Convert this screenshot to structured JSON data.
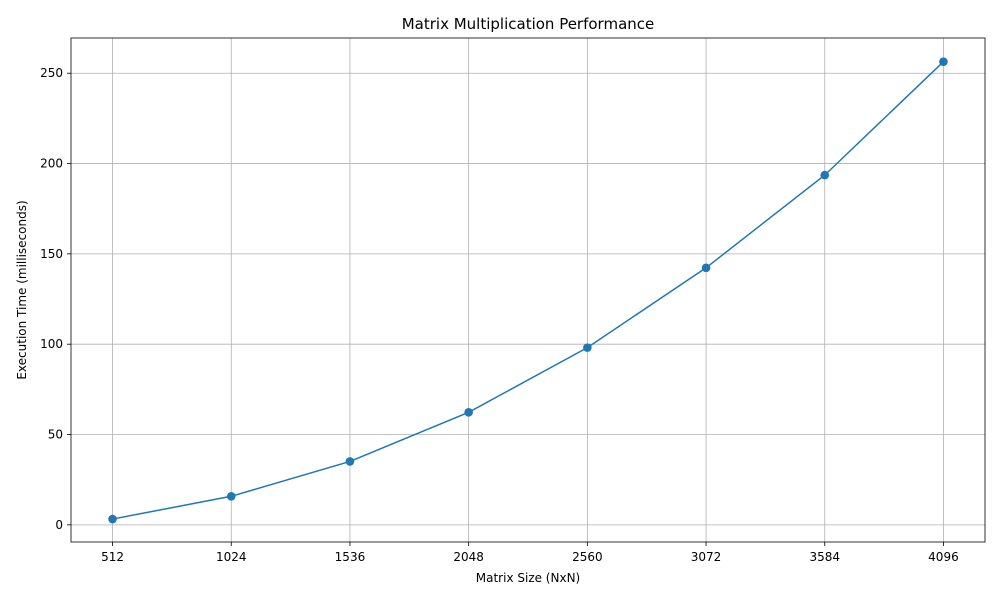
{
  "chart_data": {
    "type": "line",
    "title": "Matrix Multiplication Performance",
    "xlabel": "Matrix Size (NxN)",
    "ylabel": "Execution Time (milliseconds)",
    "x": [
      512,
      1024,
      1536,
      2048,
      2560,
      3072,
      3584,
      4096
    ],
    "xticks": [
      "512",
      "1024",
      "1536",
      "2048",
      "2560",
      "3072",
      "3584",
      "4096"
    ],
    "yticks": [
      0,
      50,
      100,
      150,
      200,
      250
    ],
    "ylim": [
      -9.5,
      269.5
    ],
    "grid": true,
    "series": [
      {
        "color": "#1f77b4",
        "marker": "circle",
        "values": [
          3.2,
          15.8,
          35.1,
          62.3,
          98.1,
          142.3,
          193.6,
          256.4
        ]
      }
    ]
  }
}
